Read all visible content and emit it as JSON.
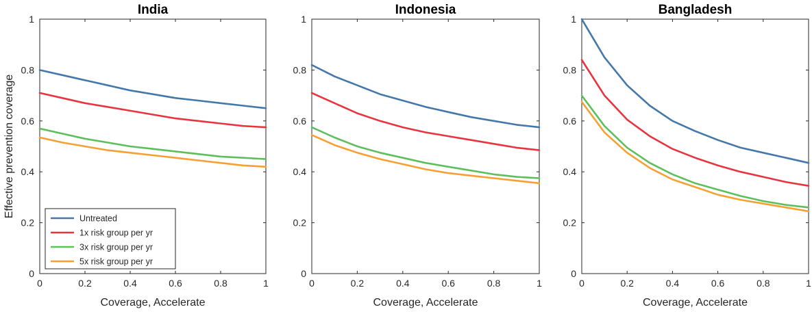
{
  "chart_data": [
    {
      "type": "line",
      "title": "India",
      "xlabel": "Coverage, Accelerate",
      "ylabel": "Effective prevention coverage",
      "xlim": [
        0,
        1
      ],
      "ylim": [
        0,
        1
      ],
      "xticks": [
        "0",
        "0.2",
        "0.4",
        "0.6",
        "0.8",
        "1"
      ],
      "yticks": [
        "0",
        "0.2",
        "0.4",
        "0.6",
        "0.8",
        "1"
      ],
      "grid": false,
      "legend": "bottom-left",
      "x": [
        0,
        0.1,
        0.2,
        0.3,
        0.4,
        0.5,
        0.6,
        0.7,
        0.8,
        0.9,
        1.0
      ],
      "series": [
        {
          "name": "Untreated",
          "color": "#4477aa",
          "values": [
            0.8,
            0.78,
            0.76,
            0.74,
            0.72,
            0.705,
            0.69,
            0.68,
            0.67,
            0.66,
            0.65
          ]
        },
        {
          "name": "1x risk group per yr",
          "color": "#e8343f",
          "values": [
            0.71,
            0.69,
            0.67,
            0.655,
            0.64,
            0.625,
            0.61,
            0.6,
            0.59,
            0.58,
            0.575
          ]
        },
        {
          "name": "3x risk group per yr",
          "color": "#5cbf5c",
          "values": [
            0.57,
            0.55,
            0.53,
            0.515,
            0.5,
            0.49,
            0.48,
            0.47,
            0.46,
            0.455,
            0.45
          ]
        },
        {
          "name": "5x risk group per yr",
          "color": "#f5a031",
          "values": [
            0.535,
            0.515,
            0.5,
            0.485,
            0.475,
            0.465,
            0.455,
            0.445,
            0.435,
            0.425,
            0.42
          ]
        }
      ]
    },
    {
      "type": "line",
      "title": "Indonesia",
      "xlabel": "Coverage, Accelerate",
      "ylabel": "",
      "xlim": [
        0,
        1
      ],
      "ylim": [
        0,
        1
      ],
      "xticks": [
        "0",
        "0.2",
        "0.4",
        "0.6",
        "0.8",
        "1"
      ],
      "yticks": [
        "0",
        "0.2",
        "0.4",
        "0.6",
        "0.8",
        "1"
      ],
      "grid": false,
      "x": [
        0,
        0.1,
        0.2,
        0.3,
        0.4,
        0.5,
        0.6,
        0.7,
        0.8,
        0.9,
        1.0
      ],
      "series": [
        {
          "name": "Untreated",
          "color": "#4477aa",
          "values": [
            0.82,
            0.775,
            0.74,
            0.705,
            0.68,
            0.655,
            0.635,
            0.615,
            0.6,
            0.585,
            0.575
          ]
        },
        {
          "name": "1x risk group per yr",
          "color": "#e8343f",
          "values": [
            0.71,
            0.67,
            0.63,
            0.6,
            0.575,
            0.555,
            0.54,
            0.525,
            0.51,
            0.495,
            0.485
          ]
        },
        {
          "name": "3x risk group per yr",
          "color": "#5cbf5c",
          "values": [
            0.575,
            0.535,
            0.5,
            0.475,
            0.455,
            0.435,
            0.42,
            0.405,
            0.39,
            0.38,
            0.375
          ]
        },
        {
          "name": "5x risk group per yr",
          "color": "#f5a031",
          "values": [
            0.545,
            0.505,
            0.475,
            0.45,
            0.43,
            0.41,
            0.395,
            0.385,
            0.375,
            0.365,
            0.355
          ]
        }
      ]
    },
    {
      "type": "line",
      "title": "Bangladesh",
      "xlabel": "Coverage, Accelerate",
      "ylabel": "",
      "xlim": [
        0,
        1
      ],
      "ylim": [
        0,
        1
      ],
      "xticks": [
        "0",
        "0.2",
        "0.4",
        "0.6",
        "0.8",
        "1"
      ],
      "yticks": [
        "0",
        "0.2",
        "0.4",
        "0.6",
        "0.8",
        "1"
      ],
      "grid": false,
      "x": [
        0,
        0.1,
        0.2,
        0.3,
        0.4,
        0.5,
        0.6,
        0.7,
        0.8,
        0.9,
        1.0
      ],
      "series": [
        {
          "name": "Untreated",
          "color": "#4477aa",
          "values": [
            1.0,
            0.85,
            0.74,
            0.66,
            0.6,
            0.56,
            0.525,
            0.495,
            0.475,
            0.455,
            0.435
          ]
        },
        {
          "name": "1x risk group per yr",
          "color": "#e8343f",
          "values": [
            0.84,
            0.7,
            0.605,
            0.54,
            0.49,
            0.455,
            0.425,
            0.4,
            0.38,
            0.36,
            0.345
          ]
        },
        {
          "name": "3x risk group per yr",
          "color": "#5cbf5c",
          "values": [
            0.7,
            0.58,
            0.495,
            0.435,
            0.39,
            0.355,
            0.33,
            0.305,
            0.285,
            0.27,
            0.26
          ]
        },
        {
          "name": "5x risk group per yr",
          "color": "#f5a031",
          "values": [
            0.675,
            0.555,
            0.475,
            0.415,
            0.37,
            0.34,
            0.31,
            0.29,
            0.275,
            0.26,
            0.245
          ]
        }
      ]
    }
  ]
}
